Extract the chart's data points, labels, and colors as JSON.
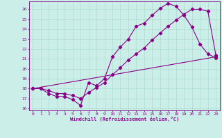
{
  "xlabel": "Windchill (Refroidissement éolien,°C)",
  "background_color": "#cceee8",
  "grid_color": "#aaddcc",
  "line_color": "#880088",
  "xlim": [
    -0.5,
    23.5
  ],
  "ylim": [
    15.8,
    26.8
  ],
  "xticks": [
    0,
    1,
    2,
    3,
    4,
    5,
    6,
    7,
    8,
    9,
    10,
    11,
    12,
    13,
    14,
    15,
    16,
    17,
    18,
    19,
    20,
    21,
    22,
    23
  ],
  "yticks": [
    16,
    17,
    18,
    19,
    20,
    21,
    22,
    23,
    24,
    25,
    26
  ],
  "series1_x": [
    0,
    1,
    2,
    3,
    4,
    5,
    6,
    7,
    8,
    9,
    10,
    11,
    12,
    13,
    14,
    15,
    16,
    17,
    18,
    19,
    20,
    21,
    22,
    23
  ],
  "series1_y": [
    18.0,
    18.0,
    17.5,
    17.2,
    17.2,
    16.9,
    16.3,
    18.6,
    18.3,
    19.0,
    21.2,
    22.2,
    23.0,
    24.3,
    24.6,
    25.4,
    26.1,
    26.6,
    26.3,
    25.4,
    24.2,
    22.5,
    21.5,
    21.1
  ],
  "series2_x": [
    0,
    1,
    2,
    3,
    4,
    5,
    6,
    7,
    8,
    9,
    10,
    11,
    12,
    13,
    14,
    15,
    16,
    17,
    18,
    19,
    20,
    21,
    22,
    23
  ],
  "series2_y": [
    18.0,
    18.0,
    17.8,
    17.5,
    17.5,
    17.3,
    17.0,
    17.6,
    18.1,
    18.6,
    19.4,
    20.1,
    20.9,
    21.5,
    22.1,
    22.9,
    23.6,
    24.3,
    24.9,
    25.5,
    26.0,
    26.0,
    25.8,
    21.4
  ],
  "series3_x": [
    0,
    23
  ],
  "series3_y": [
    18.0,
    21.2
  ]
}
